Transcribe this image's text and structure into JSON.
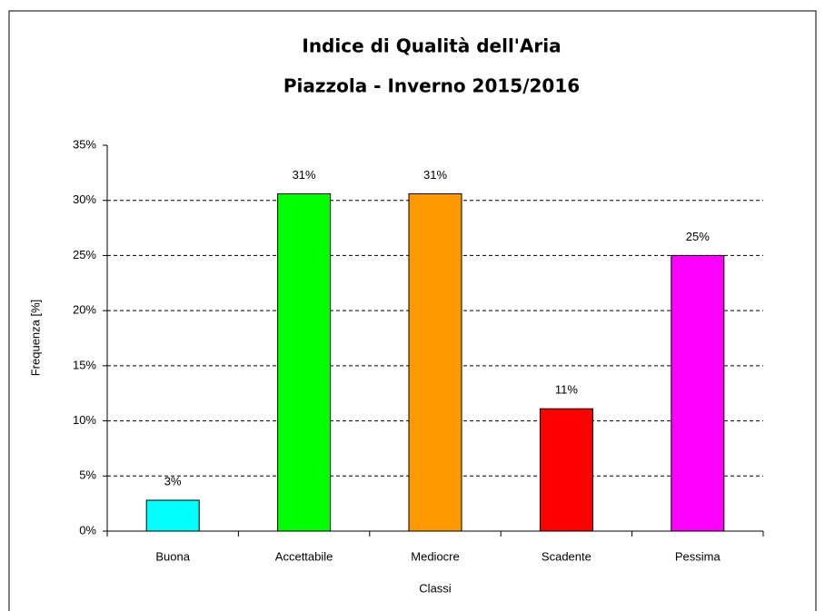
{
  "chart_data": {
    "type": "bar",
    "title": "Indice di Qualità dell'Aria",
    "subtitle": "Piazzola - Inverno 2015/2016",
    "x_label": "Classi",
    "y_label": "Frequenza [%]",
    "categories": [
      "Buona",
      "Accettabile",
      "Mediocre",
      "Scadente",
      "Pessima"
    ],
    "values": [
      2.8,
      30.6,
      30.6,
      11.1,
      25
    ],
    "value_labels": [
      "3%",
      "31%",
      "31%",
      "11%",
      "25%"
    ],
    "colors": [
      "#00ffff",
      "#00ff00",
      "#ff9900",
      "#ff0000",
      "#ff00ff"
    ],
    "ylim": [
      0,
      35
    ],
    "yticks": [
      {
        "value": 0,
        "label": "0%"
      },
      {
        "value": 5,
        "label": "5%"
      },
      {
        "value": 10,
        "label": "10%"
      },
      {
        "value": 15,
        "label": "15%"
      },
      {
        "value": 20,
        "label": "20%"
      },
      {
        "value": 25,
        "label": "25%"
      },
      {
        "value": 30,
        "label": "30%"
      },
      {
        "value": 35,
        "label": "35%"
      }
    ],
    "grid": true
  }
}
